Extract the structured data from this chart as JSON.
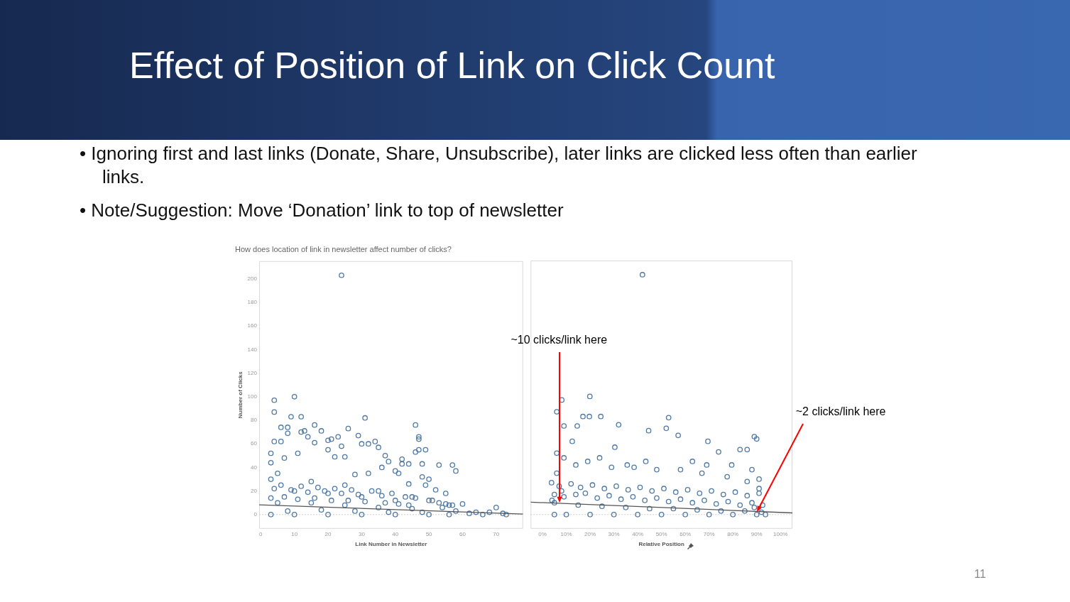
{
  "chart_data": [
    {
      "type": "scatter",
      "title": "Effect of Position of Link on Click Count",
      "subtitle": "How does location of link in newsletter affect number of clicks?",
      "annotations": [
        "• Ignoring first and last links (Donate, Share, Unsubscribe), later links are clicked less often than earlier links.",
        "• Note/Suggestion: Move ‘Donation’ link to top of newsletter",
        "11"
      ],
      "xlabel": "Link Number in Newsletter",
      "ylabel": "Number of Clicks",
      "xlim": [
        -0.5,
        78
      ],
      "xticks": [
        0,
        10,
        20,
        30,
        40,
        50,
        60,
        70
      ],
      "ylim": [
        -12,
        215
      ],
      "yticks": [
        0,
        20,
        40,
        60,
        80,
        100,
        120,
        140,
        160,
        180,
        200
      ],
      "grid": false,
      "legend": false,
      "ref_lines": [
        {
          "axis": "y",
          "value": 0,
          "color": "#cccccc",
          "line_style": "dotted"
        }
      ],
      "series": [
        {
          "marker": "circle",
          "color": "#4e79a7",
          "x": [
            4,
            6,
            9,
            12,
            14,
            17,
            19,
            22,
            24,
            27,
            29,
            33,
            36,
            39,
            43,
            46,
            51,
            53,
            55,
            57,
            3,
            7,
            11,
            16,
            21,
            26,
            31,
            37,
            41,
            44,
            24,
            10,
            4,
            4,
            9,
            12,
            31,
            6,
            8,
            16,
            46,
            26,
            13,
            12,
            18,
            8,
            14,
            23,
            29,
            47,
            47,
            4,
            6,
            20,
            21,
            34,
            30,
            32,
            16,
            3,
            35,
            24,
            46,
            49,
            47,
            20,
            11,
            3,
            37,
            7,
            25,
            38,
            22,
            42,
            42,
            48,
            53,
            57,
            58,
            44,
            40,
            36,
            41,
            28,
            32,
            48,
            50,
            44,
            49,
            52,
            55,
            60,
            70,
            62,
            64,
            66,
            68,
            72,
            73,
            56,
            50,
            45,
            35,
            25,
            15,
            5,
            3,
            10,
            20,
            30,
            40,
            54,
            58,
            3,
            10,
            20,
            30,
            40,
            50,
            56,
            5,
            15,
            25,
            35,
            45,
            8,
            18,
            28,
            38,
            48
          ],
          "values": [
            22,
            25,
            21,
            24,
            19,
            23,
            20,
            22,
            18,
            21,
            17,
            20,
            16,
            18,
            15,
            14,
            12,
            10,
            9,
            8,
            14,
            15,
            13,
            14,
            12,
            12,
            11,
            10,
            9,
            8,
            203,
            100,
            97,
            87,
            83,
            83,
            82,
            74,
            74,
            76,
            76,
            73,
            71,
            70,
            71,
            69,
            66,
            66,
            67,
            66,
            64,
            62,
            62,
            63,
            64,
            62,
            60,
            60,
            61,
            52,
            57,
            58,
            53,
            55,
            55,
            55,
            52,
            44,
            50,
            48,
            49,
            45,
            49,
            47,
            43,
            43,
            42,
            42,
            37,
            43,
            37,
            40,
            35,
            34,
            35,
            32,
            30,
            26,
            25,
            21,
            18,
            9,
            6,
            1,
            2,
            0,
            2,
            1,
            0,
            8,
            12,
            15,
            20,
            25,
            28,
            35,
            30,
            20,
            18,
            15,
            12,
            6,
            3,
            0,
            0,
            0,
            0,
            0,
            0,
            0,
            10,
            10,
            8,
            6,
            5,
            3,
            4,
            3,
            2,
            2
          ]
        },
        {
          "type": "line",
          "marker": "none",
          "color": "#555555",
          "x": [
            -0.5,
            78
          ],
          "values": [
            8.3,
            0.4
          ]
        }
      ]
    },
    {
      "type": "scatter",
      "xlabel": "Relative Position",
      "xlim": [
        -5,
        105
      ],
      "xticks": [
        {
          "value": 0,
          "label": "0%"
        },
        {
          "value": 10,
          "label": "10%"
        },
        {
          "value": 20,
          "label": "20%"
        },
        {
          "value": 30,
          "label": "30%"
        },
        {
          "value": 40,
          "label": "40%"
        },
        {
          "value": 50,
          "label": "50%"
        },
        {
          "value": 60,
          "label": "60%"
        },
        {
          "value": 70,
          "label": "70%"
        },
        {
          "value": 80,
          "label": "80%"
        },
        {
          "value": 90,
          "label": "90%"
        },
        {
          "value": 100,
          "label": "100%"
        }
      ],
      "ylim": [
        -12,
        215
      ],
      "yticks": [
        0,
        20,
        40,
        60,
        80,
        100,
        120,
        140,
        160,
        180,
        200
      ],
      "tick_labels": "x",
      "grid": false,
      "legend": false,
      "ref_lines": [
        {
          "axis": "y",
          "value": 0,
          "color": "#cccccc",
          "line_style": "dotted"
        }
      ],
      "annotations": [
        {
          "text": "~10 clicks/link here",
          "x": 7,
          "y": 10
        },
        {
          "text": "~2 clicks/link here",
          "x": 90,
          "y": 2
        }
      ],
      "series": [
        {
          "marker": "circle",
          "color": "#4e79a7",
          "x": [
            7,
            12,
            16,
            21,
            26,
            31,
            36,
            41,
            46,
            51,
            56,
            61,
            66,
            71,
            76,
            81,
            86,
            91,
            4,
            9,
            14,
            23,
            33,
            43,
            53,
            63,
            73,
            83,
            89,
            42,
            19.9,
            8.1,
            6,
            17,
            19.7,
            24.5,
            53,
            9,
            14.6,
            32,
            52,
            44.6,
            69.5,
            57,
            89,
            90,
            12.5,
            30.4,
            74,
            86,
            83,
            3.8,
            5,
            93.7,
            92.5,
            91,
            88,
            79.5,
            69,
            63,
            43.4,
            35.6,
            24,
            14,
            6,
            6,
            9,
            19,
            29,
            38.5,
            48,
            58,
            67,
            77.6,
            86,
            91,
            5,
            10,
            20,
            30,
            40,
            50,
            60,
            70,
            80,
            90,
            5,
            15,
            25,
            35,
            45,
            55,
            65,
            75,
            85,
            92,
            8,
            18,
            28,
            38,
            48,
            58,
            68,
            78,
            88
          ],
          "values": [
            24,
            26,
            23,
            25,
            22,
            24,
            21,
            23,
            20,
            22,
            19,
            21,
            18,
            20,
            17,
            19,
            16,
            18,
            12,
            15,
            17,
            14,
            13,
            12,
            11,
            10,
            9,
            8,
            6,
            203,
            100,
            97,
            87,
            83,
            83,
            83,
            82,
            75,
            75,
            76,
            73,
            71,
            62,
            67,
            66,
            64,
            62,
            57,
            53,
            55,
            55,
            27,
            17,
            0,
            8,
            30,
            38,
            42,
            42,
            45,
            45,
            42,
            48,
            42,
            35,
            52,
            48,
            45,
            40,
            40,
            38,
            38,
            35,
            32,
            28,
            22,
            0,
            0,
            0,
            0,
            0,
            0,
            0,
            0,
            0,
            0,
            10,
            8,
            7,
            6,
            5,
            5,
            4,
            3,
            3,
            2,
            20,
            18,
            16,
            15,
            14,
            13,
            12,
            11,
            10
          ]
        },
        {
          "type": "line",
          "marker": "none",
          "color": "#555555",
          "x": [
            -5,
            105
          ],
          "values": [
            10.5,
            1.4
          ]
        }
      ]
    }
  ]
}
